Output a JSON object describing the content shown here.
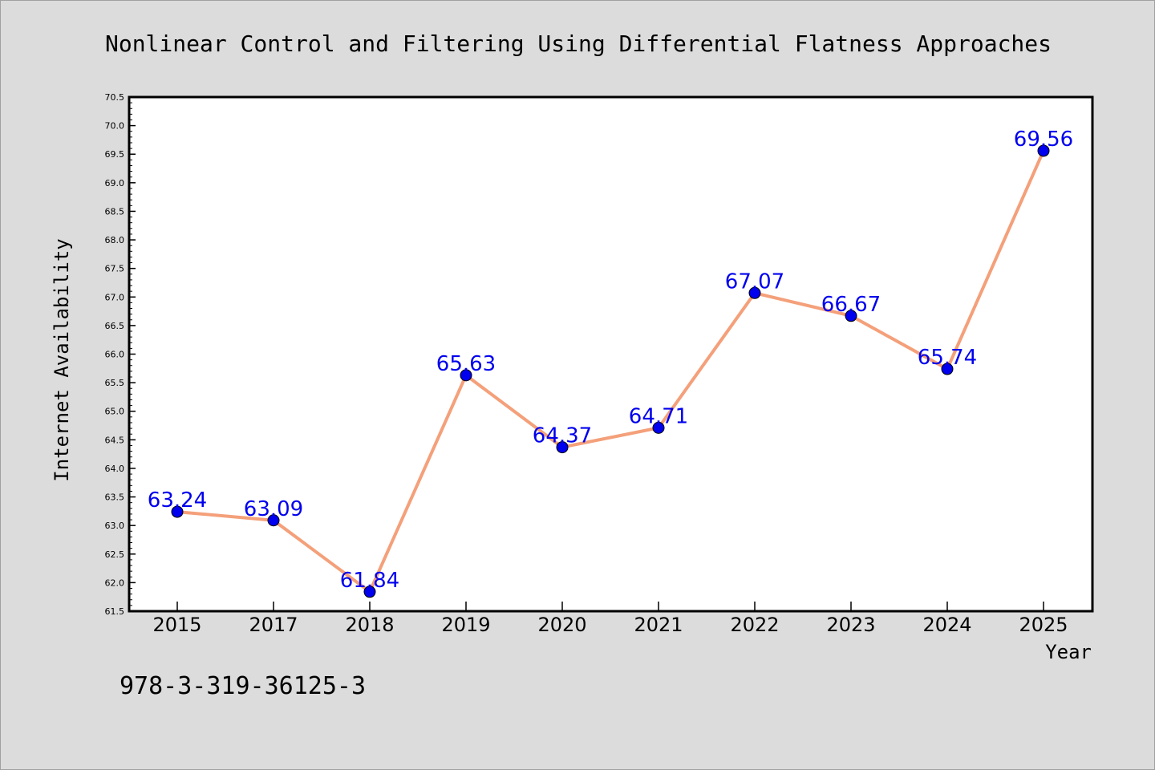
{
  "chart_data": {
    "type": "line",
    "title": "Nonlinear Control and Filtering Using Differential Flatness Approaches",
    "xlabel": "Year",
    "ylabel": "Internet Availability",
    "categories": [
      "2015",
      "2017",
      "2018",
      "2019",
      "2020",
      "2021",
      "2022",
      "2023",
      "2024",
      "2025"
    ],
    "series": [
      {
        "values": [
          63.24,
          63.09,
          61.84,
          65.63,
          64.37,
          64.71,
          67.07,
          66.67,
          65.74,
          69.56
        ],
        "data_labels": [
          "63.24",
          "63.09",
          "61.84",
          "65.63",
          "64.37",
          "64.71",
          "67.07",
          "66.67",
          "65.74",
          "69.56"
        ]
      }
    ],
    "ylim": [
      61.5,
      70.5
    ],
    "yticks": [
      "61.5",
      "62.0",
      "62.5",
      "63.0",
      "63.5",
      "64.0",
      "64.5",
      "65.0",
      "65.5",
      "66.0",
      "66.5",
      "67.0",
      "67.5",
      "68.0",
      "68.5",
      "69.0",
      "69.5",
      "70.0",
      "70.5"
    ],
    "grid": false,
    "legend": "none",
    "colors": {
      "line": "#f4a07a",
      "marker": "#0000ee",
      "label": "#0000ee",
      "background": "#dcdcdc",
      "plot_background": "#ffffff"
    }
  },
  "annotation": "978-3-319-36125-3"
}
